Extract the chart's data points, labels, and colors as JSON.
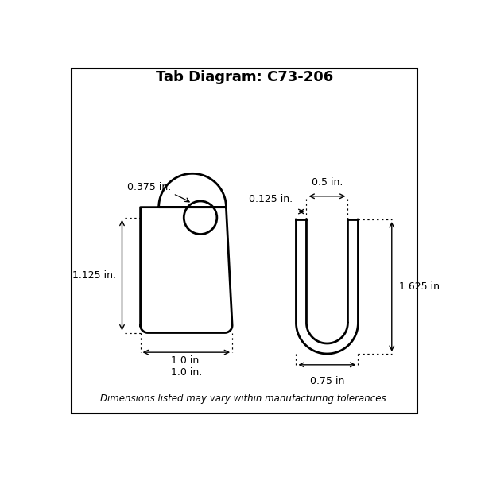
{
  "title": "Tab Diagram: C73-206",
  "footer": "Dimensions listed may vary within manufacturing tolerances.",
  "bg_color": "#ffffff",
  "line_color": "#000000",
  "annotations": {
    "tab_width_label": "1.0 in.",
    "tab_height_label": "1.125 in.",
    "hole_label": "0.375 in.",
    "clevis_width_label": "0.75 in",
    "clevis_height_label": "1.625 in.",
    "clevis_wall_label": "0.125 in.",
    "clevis_inner_label": "0.5 in."
  }
}
